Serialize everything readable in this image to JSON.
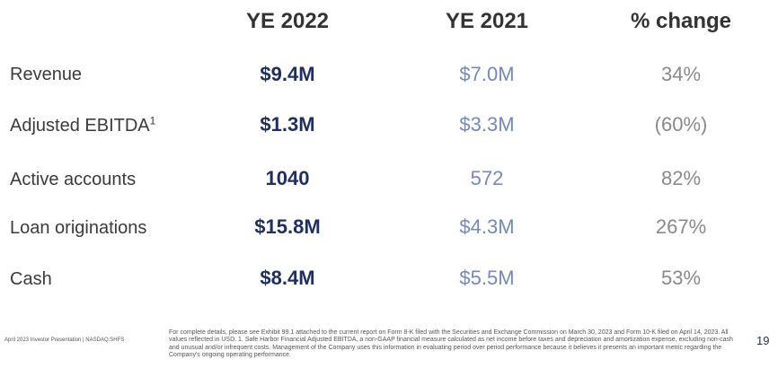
{
  "headers": {
    "ye2022": "YE 2022",
    "ye2021": "YE 2021",
    "change": "% change"
  },
  "rows": [
    {
      "label": "Revenue",
      "sup": "",
      "ye2022": "$9.4M",
      "ye2021": "$7.0M",
      "change": "34%"
    },
    {
      "label": "Adjusted EBITDA",
      "sup": "1",
      "ye2022": "$1.3M",
      "ye2021": "$3.3M",
      "change": "(60%)"
    },
    {
      "label": "Active accounts",
      "sup": "",
      "ye2022": "1040",
      "ye2021": "572",
      "change": "82%"
    },
    {
      "label": "Loan originations",
      "sup": "",
      "ye2022": "$15.8M",
      "ye2021": "$4.3M",
      "change": "267%"
    },
    {
      "label": "Cash",
      "sup": "",
      "ye2022": "$8.4M",
      "ye2021": "$5.5M",
      "change": "53%"
    }
  ],
  "footer": {
    "left": "April 2023 Investor Presentation  |  NASDAQ:SHFS",
    "footnote": "For complete details, please see Exhibit 99.1 attached to the current report on Form 8-K filed with the Securities and Exchange Commission on March 30, 2023 and Form 10-K filed on April 14, 2023. All values reflected in USD. 1. Safe Harbor Financial Adjusted EBITDA, a non-GAAP financial measure calculated as net income before taxes and depreciation and amortization expense, excluding non-cash and unusual and/or infrequent costs. Management of the Company uses this information in evaluating period over period performance because it believes it presents an important metric regarding the Company's ongoing operating performance.",
    "page_number": "19"
  },
  "colors": {
    "ye2022": "#1f2f5e",
    "ye2021": "#7589b7",
    "change": "#8a8a8a",
    "label": "#3b3b3b"
  }
}
